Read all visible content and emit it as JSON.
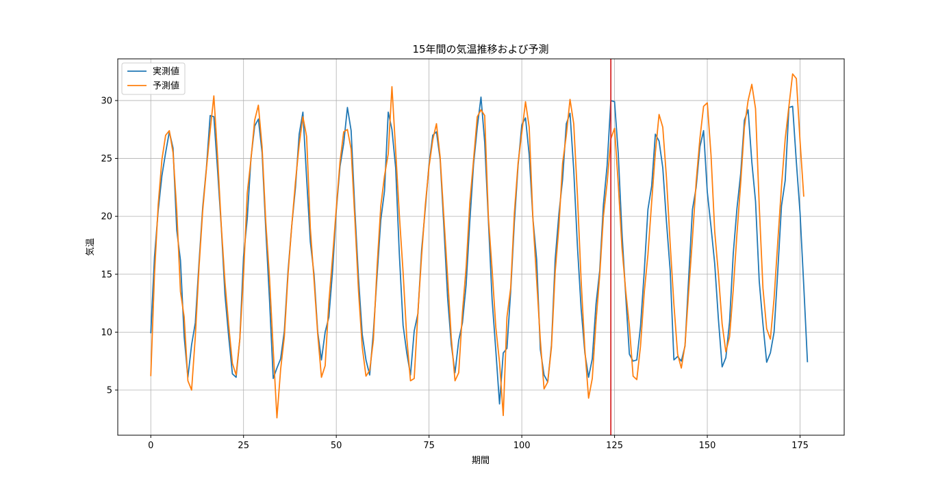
{
  "chart_data": {
    "type": "line",
    "title": "15年間の気温推移および予測",
    "xlabel": "期間",
    "ylabel": "気温",
    "xlim": [
      -8.9,
      186.9
    ],
    "ylim": [
      1.1,
      33.6
    ],
    "x_ticks": [
      0,
      25,
      50,
      75,
      100,
      125,
      150,
      175
    ],
    "y_ticks": [
      5,
      10,
      15,
      20,
      25,
      30
    ],
    "grid": true,
    "legend_position": "top-left",
    "vline": {
      "x": 124,
      "color": "#d62728"
    },
    "series": [
      {
        "name": "実測値",
        "color": "#1f77b4",
        "start_x": 0,
        "values": [
          9.9,
          16.5,
          20.5,
          23.5,
          25.5,
          27.3,
          25.9,
          18.8,
          16.2,
          9.6,
          6.1,
          8.9,
          10.8,
          16.0,
          20.8,
          24.2,
          28.7,
          28.6,
          24.0,
          19.1,
          13.2,
          9.6,
          6.4,
          6.1,
          9.4,
          16.5,
          19.8,
          25.0,
          27.8,
          28.4,
          25.5,
          18.8,
          12.8,
          6.0,
          6.9,
          7.7,
          10.1,
          15.3,
          19.2,
          22.5,
          27.1,
          29.0,
          23.3,
          17.8,
          15.0,
          10.0,
          7.6,
          10.0,
          11.3,
          15.3,
          20.5,
          24.3,
          26.3,
          29.4,
          27.4,
          20.6,
          14.6,
          9.8,
          7.6,
          6.3,
          10.0,
          14.9,
          19.7,
          22.2,
          29.0,
          27.5,
          24.2,
          16.7,
          10.6,
          8.2,
          6.3,
          10.1,
          11.6,
          17.1,
          20.7,
          24.5,
          27.0,
          27.3,
          24.9,
          19.1,
          13.0,
          8.9,
          6.5,
          9.3,
          10.8,
          14.1,
          19.6,
          24.5,
          27.7,
          30.3,
          26.4,
          19.6,
          12.8,
          8.4,
          3.8,
          8.2,
          8.6,
          13.5,
          19.5,
          24.4,
          27.9,
          28.5,
          25.3,
          19.8,
          16.3,
          8.5,
          6.3,
          5.7,
          8.9,
          16.3,
          20.2,
          23.2,
          28.0,
          28.9,
          24.0,
          17.4,
          12.0,
          8.2,
          6.1,
          7.7,
          12.4,
          15.3,
          21.0,
          24.4,
          30.0,
          29.9,
          25.4,
          18.6,
          13.2,
          8.1,
          7.5,
          7.6,
          10.5,
          15.2,
          20.6,
          22.6,
          27.1,
          26.5,
          24.2,
          19.5,
          15.3,
          7.6,
          7.9,
          7.5,
          8.8,
          14.8,
          20.6,
          22.5,
          26.0,
          27.4,
          22.1,
          19.1,
          15.9,
          11.1,
          7.0,
          7.8,
          10.9,
          16.8,
          20.7,
          23.7,
          28.3,
          29.2,
          24.7,
          21.3,
          14.4,
          10.7,
          7.4,
          8.2,
          10.0,
          15.3,
          20.9,
          23.1,
          29.4,
          29.5,
          24.7,
          20.3,
          14.0,
          7.4
        ]
      },
      {
        "name": "予測値",
        "color": "#ff7f0e",
        "start_x": 0,
        "values": [
          6.2,
          15.0,
          21.0,
          24.9,
          27.0,
          27.4,
          25.5,
          20.5,
          13.5,
          11.3,
          5.8,
          5.0,
          9.6,
          15.6,
          20.5,
          24.1,
          27.4,
          30.4,
          25.2,
          19.2,
          14.3,
          10.6,
          7.3,
          6.3,
          9.4,
          14.9,
          22.0,
          24.9,
          28.3,
          29.6,
          26.0,
          19.5,
          14.7,
          8.5,
          2.6,
          6.8,
          9.6,
          15.0,
          19.2,
          23.0,
          26.2,
          28.6,
          26.9,
          19.0,
          14.5,
          9.8,
          6.1,
          7.1,
          12.6,
          16.5,
          20.7,
          24.7,
          27.3,
          27.5,
          25.8,
          19.8,
          13.5,
          8.7,
          6.2,
          6.7,
          9.3,
          15.7,
          20.9,
          23.5,
          25.4,
          31.2,
          25.7,
          20.1,
          15.2,
          9.5,
          5.8,
          6.0,
          11.7,
          16.6,
          21.0,
          24.3,
          26.6,
          28.0,
          25.1,
          19.9,
          14.8,
          9.5,
          5.8,
          6.5,
          11.7,
          15.6,
          21.2,
          24.9,
          28.6,
          29.2,
          28.7,
          19.9,
          15.4,
          10.4,
          7.4,
          2.8,
          11.3,
          13.8,
          20.3,
          24.6,
          27.2,
          29.9,
          27.7,
          19.8,
          14.5,
          9.3,
          5.1,
          5.7,
          8.7,
          15.2,
          19.1,
          24.6,
          27.0,
          30.1,
          28.0,
          21.8,
          14.4,
          8.5,
          4.3,
          6.0,
          10.9,
          14.9,
          20.0,
          22.9,
          26.7,
          27.6,
          22.8,
          17.3,
          13.6,
          10.5,
          6.2,
          5.9,
          8.8,
          13.4,
          16.7,
          21.2,
          25.5,
          28.8,
          27.7,
          23.3,
          17.6,
          12.4,
          8.1,
          6.9,
          8.9,
          13.6,
          18.1,
          23.0,
          26.7,
          29.5,
          29.8,
          25.3,
          18.7,
          15.0,
          10.7,
          8.3,
          9.6,
          13.7,
          18.5,
          22.9,
          27.7,
          30.0,
          31.4,
          29.3,
          20.9,
          13.8,
          10.3,
          9.4,
          12.9,
          17.8,
          22.6,
          26.7,
          29.5,
          32.3,
          31.9,
          26.5,
          21.7
        ]
      }
    ]
  }
}
